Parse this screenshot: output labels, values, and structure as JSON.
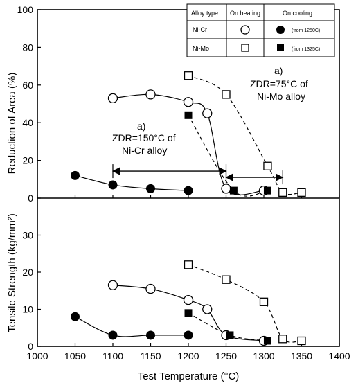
{
  "chart_data": [
    {
      "type": "scatter",
      "title": "",
      "ylabel": "Reduction of Area (%)",
      "xlabel": "",
      "xlim": [
        1000,
        1400
      ],
      "ylim": [
        0,
        100
      ],
      "yticks": [
        "0",
        "20",
        "40",
        "60",
        "80",
        "100"
      ],
      "series": [
        {
          "name": "Ni-Cr on heating",
          "marker": "open-circle",
          "line": "solid",
          "x": [
            1100,
            1150,
            1200,
            1225,
            1250,
            1300
          ],
          "y": [
            53,
            55,
            51,
            45,
            5,
            4
          ]
        },
        {
          "name": "Ni-Cr on cooling",
          "marker": "filled-circle",
          "line": "solid",
          "x": [
            1050,
            1100,
            1150,
            1200
          ],
          "y": [
            12,
            7,
            5,
            4
          ]
        },
        {
          "name": "Ni-Mo on heating",
          "marker": "open-square",
          "line": "dashed",
          "x": [
            1200,
            1250,
            1305,
            1325,
            1350
          ],
          "y": [
            65,
            55,
            17,
            3,
            3
          ]
        },
        {
          "name": "Ni-Mo on cooling",
          "marker": "filled-square",
          "line": "dashed",
          "x": [
            1200,
            1260,
            1305
          ],
          "y": [
            44,
            4,
            4
          ]
        }
      ],
      "annotations": [
        {
          "label": "a)",
          "text": "ZDR=150°C of",
          "text2": "Ni-Cr alloy",
          "range": [
            1100,
            1250
          ],
          "y": 11
        },
        {
          "label": "a)",
          "text": "ZDR=75°C of",
          "text2": "Ni-Mo alloy",
          "range": [
            1250,
            1325
          ],
          "y": 11
        }
      ],
      "legend": {
        "headers": [
          "Alloy type",
          "On heating",
          "On cooling"
        ],
        "rows": [
          {
            "alloy": "Ni-Cr",
            "heating": "open-circle",
            "cooling": "filled-circle",
            "note": "(from 1250C)"
          },
          {
            "alloy": "Ni-Mo",
            "heating": "open-square",
            "cooling": "filled-square",
            "note": "(from 1325C)"
          }
        ],
        "placement": "top-right"
      }
    },
    {
      "type": "scatter",
      "title": "",
      "ylabel": "Tensile Strength (kg/mm²)",
      "xlabel": "Test Temperature (°C)",
      "xlim": [
        1000,
        1400
      ],
      "ylim": [
        0,
        40
      ],
      "xticks": [
        "1000",
        "1050",
        "1100",
        "1150",
        "1200",
        "1250",
        "1300",
        "1350",
        "1400"
      ],
      "yticks": [
        "0",
        "10",
        "20",
        "30"
      ],
      "series": [
        {
          "name": "Ni-Cr on heating",
          "marker": "open-circle",
          "line": "solid",
          "x": [
            1100,
            1150,
            1200,
            1225,
            1250,
            1300
          ],
          "y": [
            16.5,
            15.5,
            12.5,
            10,
            3,
            1.5
          ]
        },
        {
          "name": "Ni-Cr on cooling",
          "marker": "filled-circle",
          "line": "solid",
          "x": [
            1050,
            1100,
            1150,
            1200
          ],
          "y": [
            8,
            3,
            3,
            3
          ]
        },
        {
          "name": "Ni-Mo on heating",
          "marker": "open-square",
          "line": "dashed",
          "x": [
            1200,
            1250,
            1300,
            1325,
            1350
          ],
          "y": [
            22,
            18,
            12,
            2,
            1.5
          ]
        },
        {
          "name": "Ni-Mo on cooling",
          "marker": "filled-square",
          "line": "dashed",
          "x": [
            1200,
            1255,
            1305
          ],
          "y": [
            9,
            3,
            1.5
          ]
        }
      ]
    }
  ]
}
